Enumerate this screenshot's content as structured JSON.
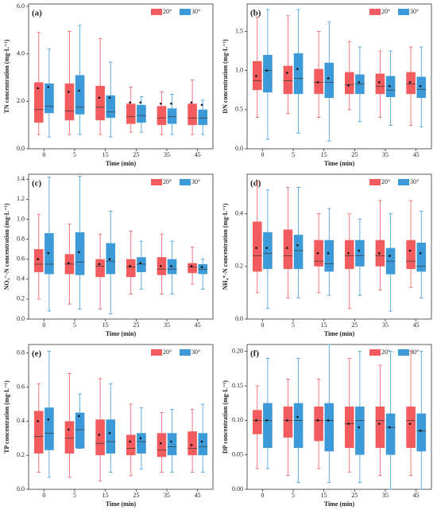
{
  "chart_data": [
    {
      "type": "box",
      "panel": "(a)",
      "ylabel": "TN concentration (mg·L⁻¹)",
      "xlabel": "Time (min)",
      "categories": [
        0,
        5,
        15,
        25,
        35,
        45
      ],
      "ylim": [
        0,
        6.1
      ],
      "yticks": [
        {
          "value": 0,
          "label": "0.0"
        },
        {
          "value": 2,
          "label": "2.0"
        },
        {
          "value": 4,
          "label": "4.0"
        },
        {
          "value": 6,
          "label": "6.0"
        }
      ],
      "legend": "top-right",
      "series": [
        {
          "name": "20°",
          "color": "#f25c5e",
          "low": [
            0.6,
            0.6,
            0.6,
            0.7,
            0.6,
            0.6
          ],
          "q1": [
            1.1,
            1.2,
            1.2,
            1.05,
            1.0,
            1.0
          ],
          "median": [
            1.65,
            1.6,
            1.75,
            1.35,
            1.3,
            1.3
          ],
          "q3": [
            2.8,
            2.75,
            2.65,
            1.9,
            1.8,
            1.9
          ],
          "high": [
            4.9,
            4.95,
            4.65,
            2.6,
            2.4,
            2.9
          ],
          "mean": [
            2.55,
            2.4,
            2.15,
            1.95,
            1.9,
            1.95
          ]
        },
        {
          "name": "30°",
          "color": "#3d9ad8",
          "low": [
            0.5,
            0.6,
            0.5,
            0.7,
            0.6,
            0.6
          ],
          "q1": [
            1.5,
            1.45,
            1.3,
            1.1,
            1.05,
            1.0
          ],
          "median": [
            1.8,
            1.75,
            1.55,
            1.4,
            1.35,
            1.3
          ],
          "q3": [
            2.75,
            3.1,
            2.25,
            1.85,
            1.7,
            1.65
          ],
          "high": [
            4.2,
            5.2,
            3.65,
            2.2,
            2.3,
            2.05
          ],
          "mean": [
            2.6,
            2.45,
            2.15,
            1.95,
            1.9,
            1.85
          ]
        }
      ]
    },
    {
      "type": "box",
      "panel": "(b)",
      "ylabel": "DN concentration (mg·L⁻¹)",
      "xlabel": "Time (min)",
      "categories": [
        0,
        5,
        15,
        25,
        35,
        45
      ],
      "ylim": [
        0,
        1.85
      ],
      "yticks": [
        {
          "value": 0,
          "label": "0.0"
        },
        {
          "value": 0.5,
          "label": "0.5"
        },
        {
          "value": 1,
          "label": "1.0"
        },
        {
          "value": 1.5,
          "label": "1.5"
        }
      ],
      "legend": "top-right",
      "series": [
        {
          "name": "20°",
          "color": "#f25c5e",
          "low": [
            0.4,
            0.45,
            0.4,
            0.5,
            0.4,
            0.3
          ],
          "q1": [
            0.75,
            0.7,
            0.7,
            0.7,
            0.7,
            0.7
          ],
          "median": [
            0.87,
            0.87,
            0.85,
            0.82,
            0.8,
            0.83
          ],
          "q3": [
            1.12,
            1.06,
            1.02,
            0.98,
            0.96,
            0.98
          ],
          "high": [
            1.68,
            1.7,
            1.5,
            1.37,
            1.25,
            1.3
          ],
          "mean": [
            0.93,
            0.97,
            0.85,
            0.81,
            0.85,
            0.85
          ]
        },
        {
          "name": "30°",
          "color": "#3d9ad8",
          "low": [
            0.12,
            0.2,
            0.1,
            0.35,
            0.3,
            0.28
          ],
          "q1": [
            0.72,
            0.7,
            0.65,
            0.7,
            0.66,
            0.65
          ],
          "median": [
            1.0,
            0.9,
            0.85,
            0.83,
            0.75,
            0.76
          ],
          "q3": [
            1.2,
            1.22,
            1.1,
            0.95,
            0.93,
            0.92
          ],
          "high": [
            1.78,
            1.78,
            1.62,
            1.3,
            1.25,
            1.3
          ],
          "mean": [
            1.0,
            1.02,
            0.9,
            0.85,
            0.8,
            0.8
          ]
        }
      ]
    },
    {
      "type": "box",
      "panel": "(c)",
      "ylabel": "NO₃⁻-N concentration (mg·L⁻¹)",
      "xlabel": "Time (min)",
      "categories": [
        0,
        5,
        15,
        25,
        35,
        45
      ],
      "ylim": [
        0,
        1.45
      ],
      "yticks": [
        {
          "value": 0,
          "label": "0.0"
        },
        0.2,
        0.4,
        0.6,
        0.8,
        {
          "value": 1,
          "label": "1.0"
        },
        1.2,
        1.4
      ],
      "legend": "top-right",
      "series": [
        {
          "name": "20°",
          "color": "#f25c5e",
          "low": [
            0.2,
            0.15,
            0.1,
            0.25,
            0.25,
            0.35
          ],
          "q1": [
            0.47,
            0.45,
            0.42,
            0.42,
            0.44,
            0.46
          ],
          "median": [
            0.55,
            0.55,
            0.53,
            0.52,
            0.5,
            0.52
          ],
          "q3": [
            0.7,
            0.65,
            0.6,
            0.6,
            0.62,
            0.56
          ],
          "high": [
            1.05,
            0.95,
            0.85,
            0.88,
            0.85,
            0.72
          ],
          "mean": [
            0.6,
            0.56,
            0.55,
            0.53,
            0.53,
            0.53
          ]
        },
        {
          "name": "30°",
          "color": "#3d9ad8",
          "low": [
            0.08,
            0.1,
            0.05,
            0.3,
            0.25,
            0.3
          ],
          "q1": [
            0.45,
            0.44,
            0.45,
            0.47,
            0.45,
            0.45
          ],
          "median": [
            0.55,
            0.57,
            0.58,
            0.55,
            0.5,
            0.5
          ],
          "q3": [
            0.86,
            0.87,
            0.76,
            0.62,
            0.6,
            0.55
          ],
          "high": [
            1.42,
            1.43,
            1.08,
            0.78,
            0.78,
            0.6
          ],
          "mean": [
            0.66,
            0.67,
            0.6,
            0.56,
            0.53,
            0.52
          ]
        }
      ]
    },
    {
      "type": "box",
      "panel": "(d)",
      "ylabel": "NH₄⁺-N concentration (mg·L⁻¹)",
      "xlabel": "Time (min)",
      "categories": [
        0,
        5,
        15,
        25,
        35,
        45
      ],
      "ylim": [
        0,
        0.55
      ],
      "yticks": [
        {
          "value": 0,
          "label": "0.0"
        },
        0.2,
        0.4
      ],
      "legend": "top-right",
      "series": [
        {
          "name": "20°",
          "color": "#f25c5e",
          "low": [
            0.1,
            0.08,
            0.1,
            0.04,
            0.11,
            0.12
          ],
          "q1": [
            0.18,
            0.19,
            0.2,
            0.19,
            0.2,
            0.19
          ],
          "median": [
            0.24,
            0.24,
            0.22,
            0.24,
            0.24,
            0.22
          ],
          "q3": [
            0.37,
            0.34,
            0.3,
            0.3,
            0.3,
            0.3
          ],
          "high": [
            0.52,
            0.5,
            0.4,
            0.4,
            0.45,
            0.45
          ],
          "mean": [
            0.27,
            0.27,
            0.25,
            0.25,
            0.25,
            0.26
          ]
        },
        {
          "name": "30°",
          "color": "#3d9ad8",
          "low": [
            0.04,
            0.08,
            0.09,
            0.09,
            0.03,
            0.08
          ],
          "q1": [
            0.19,
            0.19,
            0.18,
            0.2,
            0.17,
            0.18
          ],
          "median": [
            0.25,
            0.26,
            0.21,
            0.24,
            0.22,
            0.2
          ],
          "q3": [
            0.33,
            0.32,
            0.3,
            0.3,
            0.27,
            0.29
          ],
          "high": [
            0.49,
            0.5,
            0.42,
            0.38,
            0.4,
            0.41
          ],
          "mean": [
            0.27,
            0.28,
            0.25,
            0.26,
            0.24,
            0.25
          ]
        }
      ]
    },
    {
      "type": "box",
      "panel": "(e)",
      "ylabel": "TP concentration (mg·L⁻¹)",
      "xlabel": "Time (min)",
      "categories": [
        0,
        5,
        15,
        25,
        35,
        45
      ],
      "ylim": [
        0,
        0.85
      ],
      "yticks": [
        {
          "value": 0,
          "label": "0.0"
        },
        0.2,
        0.4,
        0.6,
        0.8
      ],
      "legend": "top-right",
      "series": [
        {
          "name": "20°",
          "color": "#f25c5e",
          "low": [
            0.1,
            0.07,
            0.05,
            0.08,
            0.1,
            0.1
          ],
          "q1": [
            0.21,
            0.21,
            0.2,
            0.2,
            0.19,
            0.2
          ],
          "median": [
            0.31,
            0.3,
            0.27,
            0.24,
            0.23,
            0.24
          ],
          "q3": [
            0.46,
            0.4,
            0.41,
            0.32,
            0.33,
            0.34
          ],
          "high": [
            0.62,
            0.68,
            0.65,
            0.5,
            0.45,
            0.47
          ],
          "mean": [
            0.4,
            0.35,
            0.32,
            0.28,
            0.27,
            0.26
          ]
        },
        {
          "name": "30°",
          "color": "#3d9ad8",
          "low": [
            0.07,
            0.24,
            0.1,
            0.12,
            0.1,
            0.1
          ],
          "q1": [
            0.23,
            0.24,
            0.21,
            0.21,
            0.2,
            0.2
          ],
          "median": [
            0.33,
            0.35,
            0.28,
            0.28,
            0.25,
            0.25
          ],
          "q3": [
            0.48,
            0.45,
            0.41,
            0.33,
            0.33,
            0.33
          ],
          "high": [
            0.81,
            0.56,
            0.62,
            0.48,
            0.47,
            0.5
          ],
          "mean": [
            0.41,
            0.43,
            0.33,
            0.3,
            0.28,
            0.28
          ]
        }
      ]
    },
    {
      "type": "box",
      "panel": "(f)",
      "ylabel": "DP concentration (mg·L⁻¹)",
      "xlabel": "Time (min)",
      "categories": [
        0,
        5,
        15,
        25,
        35,
        45
      ],
      "ylim": [
        0,
        0.21
      ],
      "yticks": [
        {
          "value": 0,
          "label": "0.00"
        },
        0.05,
        {
          "value": 0.1,
          "label": "0.10"
        },
        0.15,
        {
          "value": 0.2,
          "label": "0.20"
        }
      ],
      "legend": "top-right",
      "series": [
        {
          "name": "20°",
          "color": "#f25c5e",
          "low": [
            0.03,
            0.02,
            0.03,
            0.025,
            0.02,
            0.02
          ],
          "q1": [
            0.08,
            0.075,
            0.07,
            0.06,
            0.06,
            0.06
          ],
          "median": [
            0.1,
            0.1,
            0.1,
            0.095,
            0.1,
            0.1
          ],
          "q3": [
            0.115,
            0.12,
            0.12,
            0.12,
            0.12,
            0.12
          ],
          "high": [
            0.15,
            0.16,
            0.16,
            0.19,
            0.18,
            0.2
          ],
          "mean": [
            0.1,
            0.1,
            0.1,
            0.095,
            0.095,
            0.095
          ]
        },
        {
          "name": "30°",
          "color": "#3d9ad8",
          "low": [
            0.03,
            0.01,
            0.01,
            0.01,
            0,
            0
          ],
          "q1": [
            0.06,
            0.06,
            0.055,
            0.05,
            0.05,
            0.055
          ],
          "median": [
            0.1,
            0.1,
            0.1,
            0.1,
            0.09,
            0.085
          ],
          "q3": [
            0.125,
            0.125,
            0.125,
            0.12,
            0.11,
            0.11
          ],
          "high": [
            0.19,
            0.19,
            0.21,
            0.2,
            0.2,
            0.2
          ],
          "mean": [
            0.1,
            0.105,
            0.1,
            0.09,
            0.09,
            0.085
          ]
        }
      ]
    }
  ]
}
